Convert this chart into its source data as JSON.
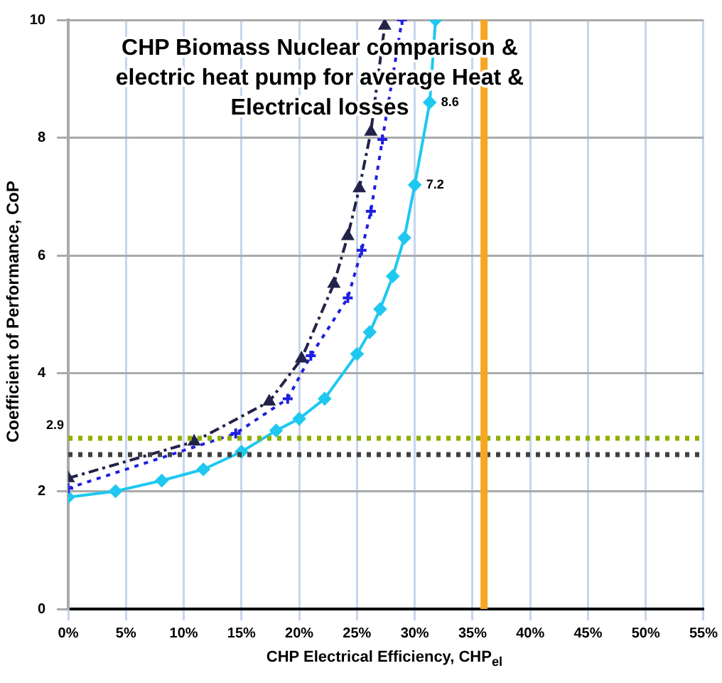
{
  "chart_data": {
    "type": "line",
    "title": "CHP Biomass Nuclear comparison & electric heat pump for average Heat & Electrical losses",
    "xlabel": "CHP Electrical Efficiency, CHP$_{el}$",
    "ylabel": "Coefficient of Performance, CoP",
    "xlim": [
      0,
      55
    ],
    "xticks": [
      {
        "value": 0,
        "label": "0%"
      },
      {
        "value": 5,
        "label": "5%"
      },
      {
        "value": 10,
        "label": "10%"
      },
      {
        "value": 15,
        "label": "15%"
      },
      {
        "value": 20,
        "label": "20%"
      },
      {
        "value": 25,
        "label": "25%"
      },
      {
        "value": 30,
        "label": "30%"
      },
      {
        "value": 35,
        "label": "35%"
      },
      {
        "value": 40,
        "label": "40%"
      },
      {
        "value": 45,
        "label": "45%"
      },
      {
        "value": 50,
        "label": "50%"
      },
      {
        "value": 55,
        "label": "55%"
      }
    ],
    "ylim": [
      0,
      10
    ],
    "yticks": [
      0,
      2,
      4,
      6,
      8,
      10
    ],
    "grid": true,
    "legend": false,
    "series": [
      {
        "color": "#23234a",
        "marker": "triangle",
        "line_style": "dashed",
        "x": [
          0,
          10.9,
          17.4,
          20.2,
          23,
          24.2,
          25.2,
          26.2,
          27.4
        ],
        "values": [
          2.22,
          2.84,
          3.52,
          4.25,
          5.52,
          6.33,
          7.14,
          8.1,
          9.9
        ]
      },
      {
        "color": "#1f1fe0",
        "marker": "cross",
        "line_style": "dotted",
        "x": [
          0,
          14.5,
          19,
          21,
          24.2,
          25.4,
          26.2,
          27.2,
          28.9
        ],
        "values": [
          2.05,
          2.98,
          3.57,
          4.3,
          5.28,
          6.09,
          6.75,
          7.97,
          10
        ]
      },
      {
        "color": "#1ec8f0",
        "marker": "diamond",
        "line_style": "solid",
        "x": [
          0,
          4.1,
          8.1,
          11.7,
          15,
          18,
          20,
          22.2,
          25,
          26.1,
          27,
          28.1,
          29.1,
          30,
          31.3,
          31.8
        ],
        "values": [
          1.9,
          2,
          2.18,
          2.37,
          2.67,
          3.03,
          3.23,
          3.57,
          4.33,
          4.7,
          5.09,
          5.65,
          6.3,
          7.2,
          8.6,
          10
        ]
      }
    ],
    "ref_lines": [
      {
        "axis": "y",
        "value": 2.9,
        "label": "2.9",
        "color": "#8db000",
        "line_style": "dotted"
      },
      {
        "axis": "y",
        "value": 2.62,
        "color": "#404040",
        "line_style": "dotted"
      },
      {
        "axis": "x",
        "value": 36,
        "color": "#f5a623",
        "line_style": "solid"
      }
    ],
    "annotations": [
      {
        "text": "7.2",
        "x": 30,
        "y": 7.2
      },
      {
        "text": "8.6",
        "x": 31.3,
        "y": 8.6
      }
    ]
  }
}
